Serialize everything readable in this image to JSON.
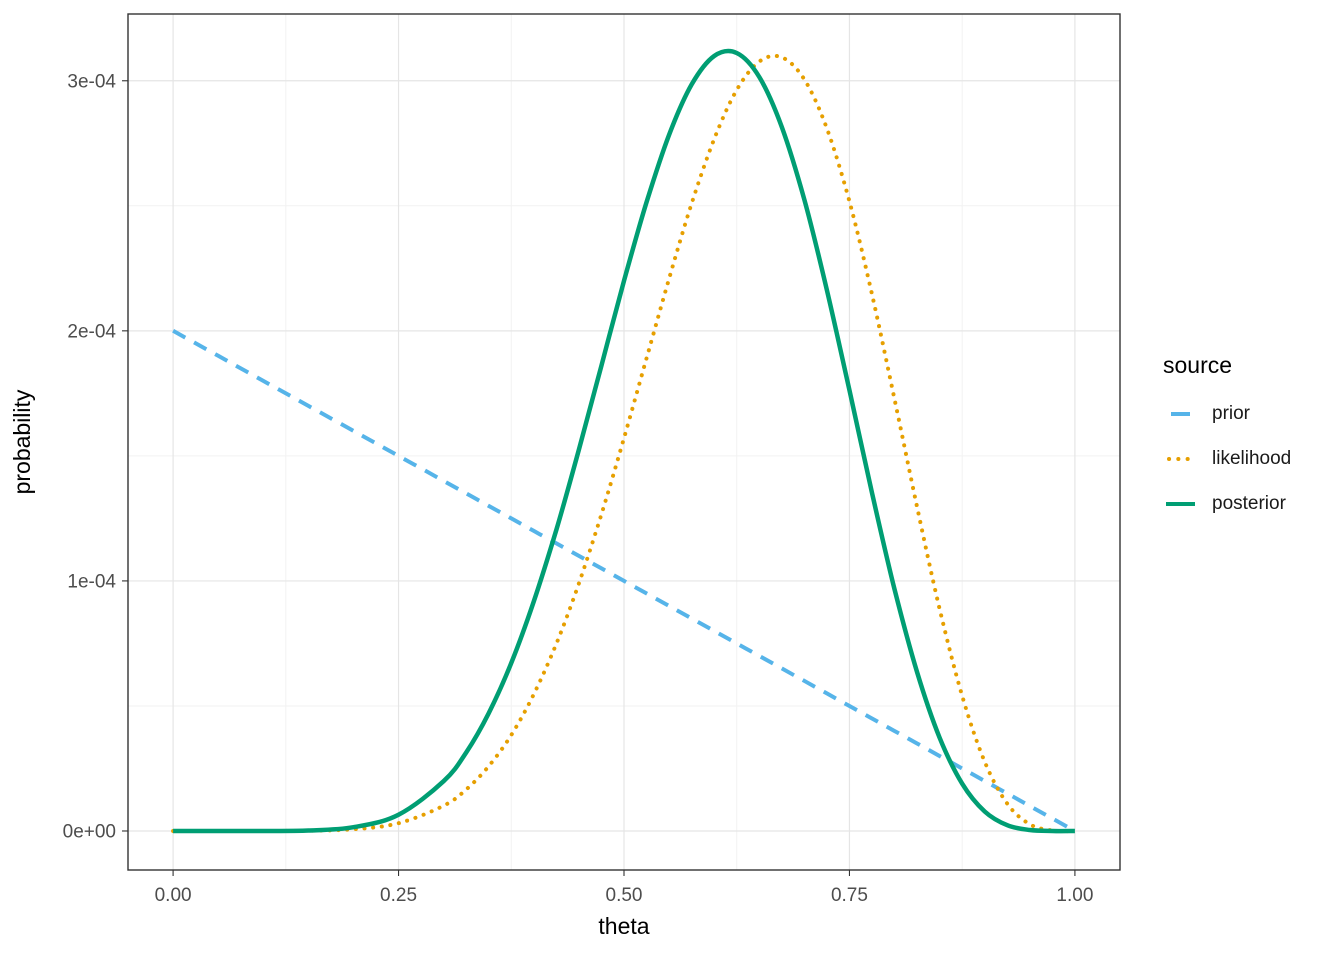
{
  "chart_data": {
    "type": "line",
    "title": "",
    "xlabel": "theta",
    "ylabel": "probability",
    "legend_title": "source",
    "legend_position": "right",
    "grid": "major and minor light-gray gridlines on white panel, dark panel border (theme_bw style)",
    "x_ticks": {
      "values": [
        0,
        0.25,
        0.5,
        0.75,
        1.0
      ],
      "labels": [
        "0.00",
        "0.25",
        "0.50",
        "0.75",
        "1.00"
      ]
    },
    "y_ticks": {
      "values": [
        0,
        1,
        2,
        3
      ],
      "labels": [
        "0e+00",
        "1e-04",
        "2e-04",
        "3e-04"
      ]
    },
    "y_unit_note": "series values are in units of 1e-4 probability",
    "xlim": [
      -0.05,
      1.05
    ],
    "ylim": [
      -0.156,
      3.267
    ],
    "x": [
      0,
      0.05,
      0.1,
      0.15,
      0.2,
      0.25,
      0.3,
      0.325,
      0.35,
      0.375,
      0.4,
      0.425,
      0.45,
      0.475,
      0.5,
      0.525,
      0.55,
      0.575,
      0.6,
      0.625,
      0.65,
      0.675,
      0.7,
      0.725,
      0.75,
      0.775,
      0.8,
      0.825,
      0.85,
      0.875,
      0.9,
      0.925,
      0.95,
      0.975,
      1
    ],
    "series": [
      {
        "name": "prior",
        "color": "#56B4E9",
        "linetype": "dashed",
        "values": [
          2.0,
          1.9,
          1.8,
          1.7,
          1.6,
          1.5,
          1.4,
          1.35,
          1.3,
          1.25,
          1.2,
          1.15,
          1.1,
          1.05,
          1.0,
          0.95,
          0.9,
          0.85,
          0.8,
          0.75,
          0.7,
          0.65,
          0.6,
          0.55,
          0.5,
          0.45,
          0.4,
          0.35,
          0.3,
          0.25,
          0.2,
          0.15,
          0.1,
          0.05,
          0
        ]
      },
      {
        "name": "likelihood",
        "color": "#E69F00",
        "linetype": "dotted",
        "values": [
          0,
          0,
          0,
          0.001,
          0.007,
          0.031,
          0.101,
          0.166,
          0.259,
          0.384,
          0.547,
          0.749,
          0.99,
          1.267,
          1.571,
          1.89,
          2.209,
          2.509,
          2.767,
          2.963,
          3.077,
          3.094,
          3.005,
          2.809,
          2.517,
          2.146,
          1.727,
          1.295,
          0.888,
          0.54,
          0.277,
          0.109,
          0.027,
          0.002,
          0
        ]
      },
      {
        "name": "posterior",
        "color": "#009E73",
        "linetype": "solid",
        "values": [
          0,
          0,
          0,
          0.002,
          0.015,
          0.065,
          0.199,
          0.314,
          0.471,
          0.672,
          0.918,
          1.205,
          1.525,
          1.862,
          2.2,
          2.514,
          2.784,
          2.985,
          3.099,
          3.111,
          3.015,
          2.815,
          2.524,
          2.163,
          1.762,
          1.352,
          0.967,
          0.635,
          0.373,
          0.189,
          0.078,
          0.023,
          0.004,
          0,
          0
        ]
      }
    ]
  }
}
